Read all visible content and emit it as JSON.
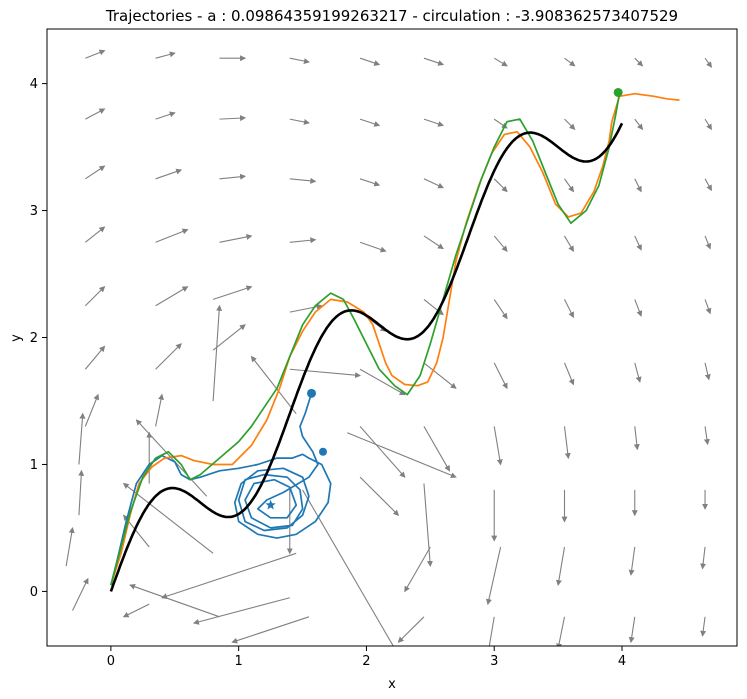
{
  "chart_data": {
    "type": "line",
    "title": "Trajectories - a : 0.09864359199263217 - circulation : -3.908362573407529",
    "xlabel": "x",
    "ylabel": "y",
    "xlim": [
      -0.5,
      4.9
    ],
    "ylim": [
      -0.43,
      4.43
    ],
    "xticks": [
      0,
      1,
      2,
      3,
      4
    ],
    "yticks": [
      0,
      1,
      2,
      3,
      4
    ],
    "grid": false,
    "colors": {
      "reference": "#000000",
      "blue": "#1f77b4",
      "orange": "#ff7f0e",
      "green": "#2ca02c",
      "quiver": "#808080"
    },
    "reference_curve": {
      "function": "y = x + 0.4*sin(2*pi*x/1.4)",
      "x_range": [
        0,
        4
      ]
    },
    "series": [
      {
        "color": "blue",
        "points": [
          [
            0,
            0.05
          ],
          [
            0.05,
            0.25
          ],
          [
            0.12,
            0.55
          ],
          [
            0.2,
            0.85
          ],
          [
            0.3,
            1.0
          ],
          [
            0.4,
            1.07
          ],
          [
            0.5,
            1.02
          ],
          [
            0.55,
            0.92
          ],
          [
            0.62,
            0.88
          ],
          [
            0.7,
            0.9
          ],
          [
            0.85,
            0.95
          ],
          [
            1.0,
            0.97
          ],
          [
            1.15,
            1.0
          ],
          [
            1.3,
            1.05
          ],
          [
            1.42,
            1.05
          ],
          [
            1.5,
            1.08
          ],
          [
            1.55,
            1.05
          ],
          [
            1.65,
            1.0
          ],
          [
            1.72,
            0.85
          ],
          [
            1.7,
            0.7
          ],
          [
            1.6,
            0.55
          ],
          [
            1.45,
            0.45
          ],
          [
            1.3,
            0.42
          ],
          [
            1.15,
            0.45
          ],
          [
            1.0,
            0.55
          ],
          [
            0.97,
            0.7
          ],
          [
            1.02,
            0.85
          ],
          [
            1.15,
            0.95
          ],
          [
            1.35,
            0.97
          ],
          [
            1.5,
            0.9
          ],
          [
            1.55,
            0.75
          ],
          [
            1.5,
            0.6
          ],
          [
            1.38,
            0.5
          ],
          [
            1.2,
            0.48
          ],
          [
            1.05,
            0.55
          ],
          [
            1.0,
            0.72
          ],
          [
            1.05,
            0.88
          ],
          [
            1.2,
            0.92
          ],
          [
            1.38,
            0.9
          ],
          [
            1.48,
            0.8
          ],
          [
            1.5,
            0.65
          ],
          [
            1.42,
            0.52
          ],
          [
            1.25,
            0.5
          ],
          [
            1.1,
            0.58
          ],
          [
            1.05,
            0.72
          ],
          [
            1.12,
            0.85
          ],
          [
            1.28,
            0.88
          ],
          [
            1.4,
            0.82
          ],
          [
            1.45,
            0.68
          ],
          [
            1.38,
            0.58
          ],
          [
            1.25,
            0.58
          ],
          [
            1.15,
            0.65
          ],
          [
            1.22,
            0.72
          ],
          [
            1.35,
            0.78
          ],
          [
            1.55,
            0.9
          ],
          [
            1.62,
            1.0
          ],
          [
            1.58,
            1.1
          ],
          [
            1.5,
            1.22
          ],
          [
            1.48,
            1.3
          ],
          [
            1.52,
            1.4
          ],
          [
            1.57,
            1.56
          ]
        ],
        "start_marker": [
          1.25,
          0.68
        ],
        "end_marker": [
          1.57,
          1.56
        ],
        "mid_marker": [
          1.66,
          1.1
        ]
      },
      {
        "color": "orange",
        "points": [
          [
            0,
            0.05
          ],
          [
            0.08,
            0.3
          ],
          [
            0.15,
            0.6
          ],
          [
            0.22,
            0.85
          ],
          [
            0.32,
            0.98
          ],
          [
            0.42,
            1.05
          ],
          [
            0.55,
            1.07
          ],
          [
            0.65,
            1.03
          ],
          [
            0.8,
            1.0
          ],
          [
            0.95,
            1.0
          ],
          [
            1.1,
            1.15
          ],
          [
            1.22,
            1.35
          ],
          [
            1.32,
            1.6
          ],
          [
            1.4,
            1.85
          ],
          [
            1.5,
            2.05
          ],
          [
            1.6,
            2.2
          ],
          [
            1.72,
            2.3
          ],
          [
            1.85,
            2.28
          ],
          [
            1.98,
            2.2
          ],
          [
            2.05,
            2.1
          ],
          [
            2.1,
            1.95
          ],
          [
            2.15,
            1.8
          ],
          [
            2.2,
            1.7
          ],
          [
            2.3,
            1.63
          ],
          [
            2.4,
            1.62
          ],
          [
            2.48,
            1.65
          ],
          [
            2.55,
            1.8
          ],
          [
            2.6,
            2.0
          ],
          [
            2.65,
            2.3
          ],
          [
            2.7,
            2.6
          ],
          [
            2.78,
            2.9
          ],
          [
            2.88,
            3.2
          ],
          [
            2.98,
            3.45
          ],
          [
            3.08,
            3.6
          ],
          [
            3.18,
            3.62
          ],
          [
            3.28,
            3.5
          ],
          [
            3.38,
            3.3
          ],
          [
            3.48,
            3.05
          ],
          [
            3.58,
            2.95
          ],
          [
            3.68,
            2.98
          ],
          [
            3.78,
            3.15
          ],
          [
            3.85,
            3.35
          ],
          [
            3.9,
            3.55
          ],
          [
            3.92,
            3.7
          ],
          [
            3.98,
            3.9
          ],
          [
            4.1,
            3.92
          ],
          [
            4.25,
            3.9
          ],
          [
            4.35,
            3.88
          ],
          [
            4.45,
            3.87
          ]
        ]
      },
      {
        "color": "green",
        "points": [
          [
            0,
            0.05
          ],
          [
            0.08,
            0.35
          ],
          [
            0.15,
            0.62
          ],
          [
            0.25,
            0.9
          ],
          [
            0.35,
            1.05
          ],
          [
            0.45,
            1.1
          ],
          [
            0.55,
            1.0
          ],
          [
            0.62,
            0.88
          ],
          [
            0.7,
            0.92
          ],
          [
            0.85,
            1.05
          ],
          [
            1.0,
            1.18
          ],
          [
            1.1,
            1.3
          ],
          [
            1.2,
            1.45
          ],
          [
            1.3,
            1.6
          ],
          [
            1.4,
            1.85
          ],
          [
            1.5,
            2.1
          ],
          [
            1.6,
            2.25
          ],
          [
            1.72,
            2.35
          ],
          [
            1.82,
            2.3
          ],
          [
            1.9,
            2.15
          ],
          [
            2.0,
            1.95
          ],
          [
            2.1,
            1.75
          ],
          [
            2.22,
            1.62
          ],
          [
            2.32,
            1.55
          ],
          [
            2.42,
            1.7
          ],
          [
            2.5,
            1.95
          ],
          [
            2.6,
            2.3
          ],
          [
            2.7,
            2.65
          ],
          [
            2.8,
            2.95
          ],
          [
            2.9,
            3.25
          ],
          [
            3.0,
            3.5
          ],
          [
            3.1,
            3.7
          ],
          [
            3.2,
            3.72
          ],
          [
            3.3,
            3.55
          ],
          [
            3.4,
            3.3
          ],
          [
            3.5,
            3.05
          ],
          [
            3.6,
            2.9
          ],
          [
            3.72,
            3.0
          ],
          [
            3.82,
            3.2
          ],
          [
            3.9,
            3.5
          ],
          [
            3.95,
            3.75
          ],
          [
            3.98,
            3.92
          ]
        ],
        "end_marker": [
          3.97,
          3.93
        ]
      }
    ],
    "quiver": [
      [
        -0.3,
        -0.15,
        0.12,
        0.25
      ],
      [
        -0.35,
        0.2,
        0.05,
        0.3
      ],
      [
        -0.25,
        0.6,
        0.02,
        0.35
      ],
      [
        -0.25,
        1.0,
        0.03,
        0.4
      ],
      [
        -0.2,
        1.3,
        0.1,
        0.25
      ],
      [
        -0.2,
        1.75,
        0.15,
        0.18
      ],
      [
        -0.2,
        2.25,
        0.15,
        0.15
      ],
      [
        -0.2,
        2.75,
        0.15,
        0.12
      ],
      [
        -0.2,
        3.25,
        0.15,
        0.1
      ],
      [
        -0.2,
        3.72,
        0.15,
        0.08
      ],
      [
        -0.2,
        4.2,
        0.15,
        0.06
      ],
      [
        0.3,
        -0.1,
        -0.2,
        -0.1
      ],
      [
        0.3,
        0.35,
        -0.2,
        0.25
      ],
      [
        0.3,
        0.85,
        0.0,
        0.4
      ],
      [
        0.35,
        1.3,
        0.05,
        0.25
      ],
      [
        0.35,
        1.75,
        0.2,
        0.2
      ],
      [
        0.35,
        2.25,
        0.25,
        0.15
      ],
      [
        0.35,
        2.75,
        0.25,
        0.1
      ],
      [
        0.35,
        3.25,
        0.2,
        0.07
      ],
      [
        0.35,
        3.72,
        0.15,
        0.05
      ],
      [
        0.35,
        4.2,
        0.15,
        0.04
      ],
      [
        0.85,
        -0.2,
        -0.7,
        0.25
      ],
      [
        0.8,
        0.3,
        -0.7,
        0.55
      ],
      [
        0.75,
        0.75,
        -0.55,
        0.6
      ],
      [
        0.8,
        1.5,
        0.05,
        0.75
      ],
      [
        0.8,
        1.9,
        0.25,
        0.2
      ],
      [
        0.8,
        2.3,
        0.3,
        0.1
      ],
      [
        0.85,
        2.75,
        0.25,
        0.05
      ],
      [
        0.85,
        3.25,
        0.2,
        0.02
      ],
      [
        0.85,
        3.72,
        0.2,
        0.01
      ],
      [
        0.85,
        4.2,
        0.2,
        0.0
      ],
      [
        1.4,
        -0.05,
        -0.75,
        -0.2
      ],
      [
        1.45,
        0.3,
        -1.05,
        -0.35
      ],
      [
        1.4,
        0.8,
        0.0,
        -0.5
      ],
      [
        1.45,
        1.4,
        -0.35,
        0.45
      ],
      [
        1.4,
        1.75,
        0.55,
        -0.05
      ],
      [
        1.4,
        2.2,
        0.25,
        0.05
      ],
      [
        1.4,
        2.75,
        0.2,
        0.02
      ],
      [
        1.4,
        3.25,
        0.2,
        -0.02
      ],
      [
        1.4,
        3.72,
        0.15,
        -0.03
      ],
      [
        1.4,
        4.2,
        0.15,
        -0.03
      ],
      [
        1.55,
        -0.2,
        -0.6,
        -0.2
      ],
      [
        1.5,
        0.8,
        0.75,
        -1.3
      ],
      [
        1.85,
        1.25,
        0.85,
        -0.35
      ],
      [
        1.95,
        0.9,
        0.3,
        -0.3
      ],
      [
        1.95,
        1.3,
        0.35,
        -0.4
      ],
      [
        1.95,
        1.75,
        0.35,
        -0.2
      ],
      [
        1.95,
        2.2,
        0.2,
        -0.15
      ],
      [
        1.95,
        2.75,
        0.2,
        -0.07
      ],
      [
        1.95,
        3.25,
        0.15,
        -0.05
      ],
      [
        1.95,
        3.72,
        0.15,
        -0.05
      ],
      [
        1.95,
        4.2,
        0.15,
        -0.05
      ],
      [
        2.45,
        -0.2,
        -0.2,
        -0.2
      ],
      [
        2.5,
        0.35,
        -0.2,
        -0.35
      ],
      [
        2.45,
        0.85,
        0.05,
        -0.65
      ],
      [
        2.45,
        1.3,
        0.2,
        -0.35
      ],
      [
        2.45,
        1.8,
        0.25,
        -0.2
      ],
      [
        2.45,
        2.3,
        0.15,
        -0.12
      ],
      [
        2.45,
        2.8,
        0.15,
        -0.1
      ],
      [
        2.45,
        3.25,
        0.15,
        -0.07
      ],
      [
        2.45,
        3.72,
        0.15,
        -0.05
      ],
      [
        2.45,
        4.2,
        0.15,
        -0.05
      ],
      [
        3.0,
        -0.2,
        -0.05,
        -0.3
      ],
      [
        3.05,
        0.35,
        -0.1,
        -0.45
      ],
      [
        3.0,
        0.8,
        0.0,
        -0.4
      ],
      [
        3.0,
        1.3,
        0.05,
        -0.3
      ],
      [
        3.0,
        1.8,
        0.1,
        -0.2
      ],
      [
        3.0,
        2.3,
        0.1,
        -0.15
      ],
      [
        3.0,
        2.8,
        0.1,
        -0.12
      ],
      [
        3.0,
        3.25,
        0.1,
        -0.1
      ],
      [
        3.0,
        3.72,
        0.1,
        -0.07
      ],
      [
        3.0,
        4.2,
        0.1,
        -0.06
      ],
      [
        3.55,
        -0.2,
        -0.05,
        -0.25
      ],
      [
        3.55,
        0.35,
        -0.05,
        -0.3
      ],
      [
        3.55,
        0.8,
        0.0,
        -0.25
      ],
      [
        3.55,
        1.3,
        0.03,
        -0.25
      ],
      [
        3.55,
        1.8,
        0.07,
        -0.17
      ],
      [
        3.55,
        2.3,
        0.07,
        -0.14
      ],
      [
        3.55,
        2.8,
        0.07,
        -0.12
      ],
      [
        3.55,
        3.25,
        0.07,
        -0.1
      ],
      [
        3.55,
        3.72,
        0.08,
        -0.08
      ],
      [
        3.55,
        4.2,
        0.08,
        -0.06
      ],
      [
        4.1,
        -0.2,
        -0.03,
        -0.2
      ],
      [
        4.1,
        0.35,
        -0.03,
        -0.22
      ],
      [
        4.1,
        0.8,
        0.0,
        -0.2
      ],
      [
        4.1,
        1.3,
        0.02,
        -0.18
      ],
      [
        4.1,
        1.8,
        0.04,
        -0.15
      ],
      [
        4.1,
        2.3,
        0.05,
        -0.13
      ],
      [
        4.1,
        2.8,
        0.05,
        -0.11
      ],
      [
        4.1,
        3.25,
        0.05,
        -0.1
      ],
      [
        4.1,
        3.72,
        0.06,
        -0.08
      ],
      [
        4.1,
        4.2,
        0.06,
        -0.06
      ],
      [
        4.65,
        -0.2,
        -0.02,
        -0.15
      ],
      [
        4.65,
        0.35,
        -0.02,
        -0.17
      ],
      [
        4.65,
        0.8,
        0.0,
        -0.15
      ],
      [
        4.65,
        1.3,
        0.02,
        -0.14
      ],
      [
        4.65,
        1.8,
        0.03,
        -0.13
      ],
      [
        4.65,
        2.3,
        0.04,
        -0.11
      ],
      [
        4.65,
        2.8,
        0.04,
        -0.1
      ],
      [
        4.65,
        3.25,
        0.05,
        -0.09
      ],
      [
        4.65,
        3.72,
        0.05,
        -0.08
      ],
      [
        4.65,
        4.2,
        0.05,
        -0.07
      ]
    ]
  }
}
